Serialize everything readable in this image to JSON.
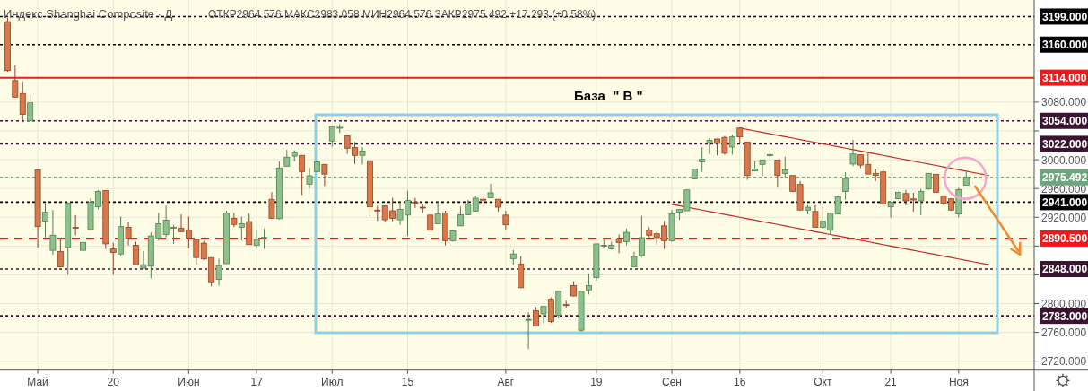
{
  "chart_data": {
    "type": "candlestick",
    "title": "Индекс Shanghai Composite · Д",
    "subtitle": "ОТКР2964.576 МАКС2983.058 МИН2964.576 ЗАКР2975.492 +17.293 (+0.58%)",
    "categories": [
      null,
      null,
      null,
      null,
      "Май",
      null,
      null,
      null,
      null,
      null,
      null,
      null,
      null,
      null,
      "20",
      null,
      null,
      null,
      null,
      null,
      null,
      null,
      null,
      null,
      "Июн",
      null,
      null,
      null,
      null,
      null,
      null,
      null,
      null,
      "17",
      null,
      null,
      null,
      null,
      null,
      null,
      null,
      null,
      null,
      "Июл",
      null,
      null,
      null,
      null,
      null,
      null,
      null,
      null,
      null,
      "15",
      null,
      null,
      null,
      null,
      null,
      null,
      null,
      null,
      null,
      null,
      null,
      null,
      "Авг",
      null,
      null,
      null,
      null,
      null,
      null,
      null,
      null,
      null,
      null,
      null,
      "19",
      null,
      null,
      null,
      null,
      null,
      null,
      null,
      null,
      null,
      "Сен",
      null,
      null,
      null,
      null,
      null,
      null,
      null,
      null,
      "16",
      null,
      null,
      null,
      null,
      null,
      null,
      null,
      null,
      null,
      null,
      "Окт",
      null,
      null,
      null,
      null,
      null,
      null,
      null,
      null,
      "21",
      null,
      null,
      null,
      null,
      null,
      null,
      null,
      null,
      "Ноя",
      null,
      null,
      null,
      null
    ],
    "ohlc": [
      [
        3192,
        3197,
        3122,
        3124
      ],
      [
        3110,
        3131,
        3087,
        3087
      ],
      [
        3092,
        3109,
        3052,
        3063
      ],
      [
        3054,
        3090,
        3054,
        3079
      ],
      [
        2986,
        2986,
        2878,
        2907
      ],
      [
        2914.5,
        2939,
        2892,
        2927
      ],
      [
        2874,
        2930,
        2868,
        2895
      ],
      [
        2872.5,
        2890,
        2851,
        2851
      ],
      [
        2878,
        2940,
        2840,
        2940
      ],
      [
        2906,
        2923,
        2895,
        2905
      ],
      [
        2874,
        2899,
        2874,
        2885
      ],
      [
        2903,
        2946.5,
        2903,
        2941
      ],
      [
        2934.5,
        2958,
        2931,
        2956
      ],
      [
        2957,
        2957,
        2876,
        2883
      ],
      [
        2876,
        2884.5,
        2840,
        2871
      ],
      [
        2869,
        2921,
        2865.5,
        2907
      ],
      [
        2906,
        2914,
        2881,
        2891
      ],
      [
        2881,
        2886,
        2854,
        2854
      ],
      [
        2849,
        2873,
        2849,
        2854
      ],
      [
        2852,
        2899,
        2835,
        2894
      ],
      [
        2891,
        2926,
        2887.5,
        2911
      ],
      [
        2896,
        2936,
        2892,
        2916
      ],
      [
        2905,
        2909.5,
        2883,
        2906
      ],
      [
        2905,
        2924,
        2900,
        2900
      ],
      [
        2902.5,
        2921,
        2877,
        2891
      ],
      [
        2889,
        2889,
        2854,
        2864
      ],
      [
        2884,
        2887,
        2861,
        2862
      ],
      [
        2864,
        2864,
        2824,
        2829
      ],
      [
        2833.5,
        2862.5,
        2825,
        2853
      ],
      [
        2855.5,
        2929,
        2855,
        2926
      ],
      [
        2918.5,
        2926,
        2906,
        2910
      ],
      [
        2906,
        2921,
        2887.5,
        2911
      ],
      [
        2914,
        2925,
        2882,
        2882
      ],
      [
        2881,
        2903,
        2876,
        2889
      ],
      [
        2891,
        2904,
        2876,
        2892
      ],
      [
        2945,
        2955,
        2918,
        2918.5
      ],
      [
        2918,
        2997.6,
        2917,
        2988.5
      ],
      [
        2991,
        3014,
        2990,
        3003.5
      ],
      [
        3005,
        3013,
        2997.6,
        3010
      ],
      [
        3006,
        3006,
        2951,
        2983.5
      ],
      [
        2966,
        2989,
        2960,
        2977.7
      ],
      [
        2983.5,
        2997,
        2983,
        2997
      ],
      [
        2993.5,
        2994,
        2963.5,
        2980
      ],
      [
        3026,
        3046,
        3018,
        3046
      ],
      [
        3044,
        3049.6,
        3037,
        3045
      ],
      [
        3033,
        3033,
        3008,
        3016
      ],
      [
        3017,
        3024.6,
        2994,
        3006
      ],
      [
        3006,
        3017.6,
        2993.5,
        3012
      ],
      [
        2998.5,
        2998.5,
        2922,
        2934.5
      ],
      [
        2930,
        2936,
        2915,
        2929
      ],
      [
        2936,
        2936,
        2914,
        2916.5
      ],
      [
        2929,
        2947,
        2914.5,
        2918.5
      ],
      [
        2916.5,
        2943,
        2909.5,
        2931
      ],
      [
        2923,
        2957,
        2894,
        2943.6
      ],
      [
        2941,
        2947,
        2933,
        2940
      ],
      [
        2934,
        2939,
        2926,
        2933
      ],
      [
        2923,
        2923,
        2902,
        2902
      ],
      [
        2911,
        2941.5,
        2911,
        2925
      ],
      [
        2926,
        2929,
        2881,
        2887.5
      ],
      [
        2887.5,
        2903,
        2886,
        2901
      ],
      [
        2908,
        2935,
        2908,
        2923.5
      ],
      [
        2923.5,
        2944,
        2923,
        2938
      ],
      [
        2928.6,
        2950,
        2928,
        2946.5
      ],
      [
        2945,
        2950,
        2935,
        2944
      ],
      [
        2947,
        2966.5,
        2947,
        2954
      ],
      [
        2945,
        2945,
        2928,
        2934
      ],
      [
        2923,
        2929,
        2903,
        2909.5
      ],
      [
        2862.5,
        2874.6,
        2854,
        2869
      ],
      [
        2855,
        2866,
        2822,
        2822
      ],
      [
        2777,
        2788,
        2736.6,
        2778
      ],
      [
        2790,
        2795,
        2769,
        2769
      ],
      [
        2785.7,
        2796,
        2773,
        2796
      ],
      [
        2806,
        2808.5,
        2773,
        2775
      ],
      [
        2783.6,
        2817,
        2779,
        2817
      ],
      [
        2798.5,
        2804,
        2794,
        2798
      ],
      [
        2825,
        2831,
        2810,
        2810.6
      ],
      [
        2763,
        2817,
        2760.7,
        2817
      ],
      [
        2819,
        2842,
        2812.7,
        2825
      ],
      [
        2836,
        2883,
        2832,
        2883
      ],
      [
        2880,
        2891,
        2878,
        2881
      ],
      [
        2876,
        2886,
        2875,
        2881
      ],
      [
        2890,
        2896,
        2870,
        2885
      ],
      [
        2886,
        2904,
        2881,
        2899
      ],
      [
        2851,
        2872,
        2851,
        2865.5
      ],
      [
        2866.7,
        2922,
        2864.6,
        2891.6
      ],
      [
        2902,
        2906,
        2890,
        2895
      ],
      [
        2897,
        2900,
        2882.5,
        2891.6
      ],
      [
        2908,
        2915,
        2876,
        2887.5
      ],
      [
        2887.5,
        2930,
        2886,
        2925
      ],
      [
        2927,
        2931,
        2916.5,
        2931
      ],
      [
        2929,
        2958,
        2929,
        2958
      ],
      [
        2973.5,
        2987,
        2973,
        2987
      ],
      [
        2997,
        3017.6,
        2983,
        3000.5
      ],
      [
        3023.4,
        3030,
        3008,
        3026.7
      ],
      [
        3028.8,
        3029,
        3006,
        3022.6
      ],
      [
        3031,
        3033,
        3007,
        3009
      ],
      [
        3017.6,
        3035,
        3007,
        3031.7
      ],
      [
        3044,
        3045,
        3022.6,
        3031.7
      ],
      [
        3024.6,
        3024.6,
        2972,
        2978
      ],
      [
        2984.5,
        2997.6,
        2984,
        2987
      ],
      [
        2993.5,
        3000,
        2977,
        2999.7
      ],
      [
        3006,
        3012,
        2997.6,
        3007
      ],
      [
        2999.7,
        3000,
        2962.3,
        2978
      ],
      [
        2981,
        3004,
        2975,
        2986
      ],
      [
        2978,
        2978,
        2955,
        2956
      ],
      [
        2965.6,
        2970.6,
        2930,
        2930
      ],
      [
        2930,
        2937,
        2924,
        2934
      ],
      [
        2928,
        2937,
        2906,
        2906
      ],
      [
        2906,
        2935,
        2904,
        2914.5
      ],
      [
        2902,
        2926,
        2896,
        2925.7
      ],
      [
        2924.5,
        2950,
        2924,
        2948.6
      ],
      [
        2956,
        2982.7,
        2944.5,
        2974
      ],
      [
        2994,
        3027.5,
        2991,
        3008
      ],
      [
        3006.8,
        3007,
        2988.5,
        2992.5
      ],
      [
        2993.5,
        3009,
        2980,
        2980
      ],
      [
        2981,
        2987,
        2970.6,
        2978
      ],
      [
        2983,
        2987,
        2934.5,
        2938.6
      ],
      [
        2934.5,
        2941,
        2919.5,
        2940.7
      ],
      [
        2945.7,
        2955,
        2945,
        2954.8
      ],
      [
        2953,
        2958,
        2936.6,
        2942.8
      ],
      [
        2945.5,
        2954,
        2928,
        2944
      ],
      [
        2942.8,
        2959.4,
        2923,
        2956
      ],
      [
        2959.4,
        2981,
        2958,
        2981
      ],
      [
        2979.7,
        2980,
        2954,
        2954.8
      ],
      [
        2949.8,
        2950,
        2937,
        2939.4
      ],
      [
        2945.7,
        2946,
        2929,
        2930
      ],
      [
        2924.5,
        2961,
        2919.5,
        2958.2
      ],
      [
        2964.576,
        2983.058,
        2964.576,
        2975.492
      ],
      null,
      null,
      null
    ],
    "series": [
      {
        "type": "line",
        "color": "#c62828",
        "values": [
          null,
          null,
          null,
          null,
          null,
          null,
          null,
          null,
          null,
          null,
          null,
          null,
          null,
          null,
          null,
          null,
          null,
          null,
          null,
          null,
          null,
          null,
          null,
          null,
          null,
          null,
          null,
          null,
          null,
          null,
          null,
          null,
          null,
          null,
          null,
          null,
          null,
          null,
          null,
          null,
          null,
          null,
          null,
          null,
          null,
          null,
          null,
          null,
          null,
          null,
          null,
          null,
          null,
          null,
          null,
          null,
          null,
          null,
          null,
          null,
          null,
          null,
          null,
          null,
          null,
          null,
          null,
          null,
          null,
          null,
          null,
          null,
          null,
          null,
          null,
          null,
          null,
          null,
          null,
          null,
          null,
          null,
          null,
          null,
          null,
          null,
          null,
          null,
          null,
          null,
          null,
          null,
          null,
          null,
          null,
          null,
          null,
          3044,
          3042,
          3040,
          3038,
          3036,
          3034,
          3032,
          3030,
          3028,
          3026,
          3024,
          3022,
          3020,
          3018,
          3016,
          3014,
          3012,
          3010,
          3008,
          3006,
          3004,
          3002,
          3000,
          2998,
          2996,
          2994,
          2992,
          2990,
          2988,
          2986,
          2984,
          2982,
          2980,
          2978
        ]
      },
      {
        "type": "line",
        "color": "#c62828",
        "values": [
          null,
          null,
          null,
          null,
          null,
          null,
          null,
          null,
          null,
          null,
          null,
          null,
          null,
          null,
          null,
          null,
          null,
          null,
          null,
          null,
          null,
          null,
          null,
          null,
          null,
          null,
          null,
          null,
          null,
          null,
          null,
          null,
          null,
          null,
          null,
          null,
          null,
          null,
          null,
          null,
          null,
          null,
          null,
          null,
          null,
          null,
          null,
          null,
          null,
          null,
          null,
          null,
          null,
          null,
          null,
          null,
          null,
          null,
          null,
          null,
          null,
          null,
          null,
          null,
          null,
          null,
          null,
          null,
          null,
          null,
          null,
          null,
          null,
          null,
          null,
          null,
          null,
          null,
          null,
          null,
          null,
          null,
          null,
          null,
          null,
          null,
          null,
          null,
          2938,
          2936,
          2934,
          2932,
          2930,
          2928,
          2926,
          2924,
          2922,
          2920,
          2918,
          2916,
          2914,
          2912,
          2910,
          2908,
          2906,
          2904,
          2902,
          2900,
          2898,
          2896,
          2894,
          2892,
          2890,
          2888,
          2886,
          2884,
          2882,
          2880,
          2878,
          2876,
          2874,
          2872,
          2870,
          2868,
          2866,
          2864,
          2862,
          2860,
          2858,
          2856,
          2854
        ]
      }
    ],
    "ylim": [
      2707.5,
      3222
    ],
    "yticks": [
      {
        "value": 2720,
        "label": "2720.000"
      },
      {
        "value": 2760,
        "label": "2760.000"
      },
      {
        "value": 2800,
        "label": "2800.000"
      },
      {
        "value": 2840,
        "label": null
      },
      {
        "value": 2880,
        "label": null
      },
      {
        "value": 2920,
        "label": "2920.000"
      },
      {
        "value": 2960,
        "label": "2960.000"
      },
      {
        "value": 3000,
        "label": "3000.000"
      },
      {
        "value": 3040,
        "label": null
      },
      {
        "value": 3080,
        "label": "3080.000"
      }
    ],
    "grid": true,
    "ref_lines": [
      {
        "axis": "y",
        "value": 3199,
        "label": "3199.000",
        "color": "#000000",
        "line_style": "dotted"
      },
      {
        "axis": "y",
        "value": 3160,
        "label": "3160.000",
        "color": "#000000",
        "line_style": "dotted"
      },
      {
        "axis": "y",
        "value": 3114,
        "label": "3114.000",
        "color": "#f01818",
        "line_style": "solid"
      },
      {
        "axis": "y",
        "value": 3054,
        "label": "3054.000",
        "color": "#3a1430",
        "line_style": "dotted"
      },
      {
        "axis": "y",
        "value": 3022,
        "label": "3022.000",
        "color": "#3a1430",
        "line_style": "dotted"
      },
      {
        "axis": "y",
        "value": 2975.492,
        "label": "2975.492",
        "color": "#6fa57c",
        "line_style": "dotted"
      },
      {
        "axis": "y",
        "value": 2941,
        "label": "2941.000",
        "color": "#000000",
        "line_style": "dotted"
      },
      {
        "axis": "y",
        "value": 2890.5,
        "label": "2890.500",
        "color": "#f01818",
        "line_style": "dashed"
      },
      {
        "axis": "y",
        "value": 2848,
        "label": "2848.000",
        "color": "#3a1430",
        "line_style": "dotted"
      },
      {
        "axis": "y",
        "value": 2783,
        "label": "2783.000",
        "color": "#3a1430",
        "line_style": "dotted"
      }
    ],
    "annotations": [
      "База  \" В \""
    ]
  }
}
